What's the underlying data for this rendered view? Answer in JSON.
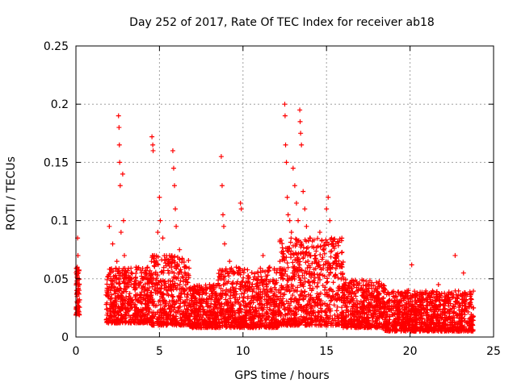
{
  "chart_data": {
    "type": "scatter",
    "title": "Day 252 of 2017, Rate Of TEC Index for receiver ab18",
    "xlabel": "GPS time / hours",
    "ylabel": "ROTI / TECUs",
    "xlim": [
      0,
      25
    ],
    "ylim": [
      0,
      0.25
    ],
    "xticks": [
      0,
      5,
      10,
      15,
      20,
      25
    ],
    "xtick_labels": [
      "0",
      "5",
      "10",
      "15",
      "20",
      "25"
    ],
    "yticks": [
      0,
      0.05,
      0.1,
      0.15,
      0.2,
      0.25
    ],
    "ytick_labels": [
      "0",
      "0.05",
      "0.1",
      "0.15",
      "0.2",
      "0.25"
    ],
    "grid": true,
    "marker": "+",
    "color": "#ff0000",
    "series": [
      {
        "points": [
          [
            0.02,
            0.025
          ],
          [
            0.05,
            0.04
          ],
          [
            0.08,
            0.06
          ],
          [
            0.1,
            0.085
          ],
          [
            0.12,
            0.07
          ],
          [
            0.15,
            0.055
          ],
          [
            0.18,
            0.03
          ],
          [
            0.2,
            0.045
          ],
          [
            1.9,
            0.035
          ],
          [
            2.0,
            0.095
          ],
          [
            2.1,
            0.045
          ],
          [
            2.2,
            0.08
          ],
          [
            2.3,
            0.03
          ],
          [
            2.45,
            0.065
          ],
          [
            2.55,
            0.19
          ],
          [
            2.58,
            0.18
          ],
          [
            2.6,
            0.165
          ],
          [
            2.62,
            0.15
          ],
          [
            2.65,
            0.13
          ],
          [
            2.7,
            0.09
          ],
          [
            2.8,
            0.14
          ],
          [
            2.85,
            0.1
          ],
          [
            2.9,
            0.07
          ],
          [
            3.0,
            0.05
          ],
          [
            3.3,
            0.045
          ],
          [
            3.6,
            0.06
          ],
          [
            4.0,
            0.05
          ],
          [
            4.3,
            0.04
          ],
          [
            4.55,
            0.172
          ],
          [
            4.6,
            0.165
          ],
          [
            4.62,
            0.16
          ],
          [
            4.7,
            0.07
          ],
          [
            4.9,
            0.09
          ],
          [
            5.0,
            0.12
          ],
          [
            5.05,
            0.1
          ],
          [
            5.2,
            0.085
          ],
          [
            5.6,
            0.07
          ],
          [
            5.8,
            0.16
          ],
          [
            5.85,
            0.145
          ],
          [
            5.9,
            0.13
          ],
          [
            5.95,
            0.11
          ],
          [
            6.0,
            0.095
          ],
          [
            6.2,
            0.075
          ],
          [
            6.5,
            0.06
          ],
          [
            7.0,
            0.035
          ],
          [
            7.5,
            0.04
          ],
          [
            8.0,
            0.045
          ],
          [
            8.7,
            0.155
          ],
          [
            8.75,
            0.13
          ],
          [
            8.8,
            0.105
          ],
          [
            8.85,
            0.095
          ],
          [
            8.9,
            0.08
          ],
          [
            9.2,
            0.065
          ],
          [
            9.5,
            0.055
          ],
          [
            9.85,
            0.115
          ],
          [
            9.9,
            0.11
          ],
          [
            10.3,
            0.05
          ],
          [
            10.8,
            0.045
          ],
          [
            11.2,
            0.07
          ],
          [
            11.6,
            0.06
          ],
          [
            12.0,
            0.055
          ],
          [
            12.5,
            0.2
          ],
          [
            12.52,
            0.19
          ],
          [
            12.55,
            0.165
          ],
          [
            12.6,
            0.15
          ],
          [
            12.65,
            0.12
          ],
          [
            12.7,
            0.105
          ],
          [
            12.8,
            0.1
          ],
          [
            12.9,
            0.09
          ],
          [
            13.0,
            0.145
          ],
          [
            13.1,
            0.13
          ],
          [
            13.2,
            0.115
          ],
          [
            13.3,
            0.1
          ],
          [
            13.4,
            0.195
          ],
          [
            13.42,
            0.185
          ],
          [
            13.45,
            0.175
          ],
          [
            13.5,
            0.165
          ],
          [
            13.6,
            0.125
          ],
          [
            13.7,
            0.11
          ],
          [
            13.8,
            0.095
          ],
          [
            14.0,
            0.085
          ],
          [
            14.3,
            0.07
          ],
          [
            14.6,
            0.09
          ],
          [
            14.8,
            0.075
          ],
          [
            15.0,
            0.11
          ],
          [
            15.1,
            0.12
          ],
          [
            15.2,
            0.1
          ],
          [
            15.3,
            0.085
          ],
          [
            15.6,
            0.065
          ],
          [
            16.0,
            0.05
          ],
          [
            16.6,
            0.045
          ],
          [
            17.2,
            0.04
          ],
          [
            17.8,
            0.035
          ],
          [
            18.3,
            0.045
          ],
          [
            19.0,
            0.035
          ],
          [
            19.9,
            0.04
          ],
          [
            20.1,
            0.062
          ],
          [
            20.6,
            0.03
          ],
          [
            21.2,
            0.03
          ],
          [
            21.7,
            0.045
          ],
          [
            22.2,
            0.035
          ],
          [
            22.7,
            0.07
          ],
          [
            23.2,
            0.055
          ],
          [
            23.6,
            0.035
          ],
          [
            23.8,
            0.025
          ]
        ]
      }
    ],
    "dense_band": {
      "segments": [
        {
          "x": [
            0.0,
            0.22
          ],
          "y": [
            0.018,
            0.06
          ]
        },
        {
          "x": [
            1.8,
            4.5
          ],
          "y": [
            0.012,
            0.06
          ]
        },
        {
          "x": [
            4.5,
            6.8
          ],
          "y": [
            0.01,
            0.07
          ]
        },
        {
          "x": [
            6.8,
            8.5
          ],
          "y": [
            0.008,
            0.045
          ]
        },
        {
          "x": [
            8.5,
            12.2
          ],
          "y": [
            0.008,
            0.06
          ]
        },
        {
          "x": [
            12.2,
            16.0
          ],
          "y": [
            0.01,
            0.085
          ]
        },
        {
          "x": [
            16.0,
            18.5
          ],
          "y": [
            0.008,
            0.05
          ]
        },
        {
          "x": [
            18.5,
            23.8
          ],
          "y": [
            0.005,
            0.04
          ]
        }
      ]
    }
  }
}
